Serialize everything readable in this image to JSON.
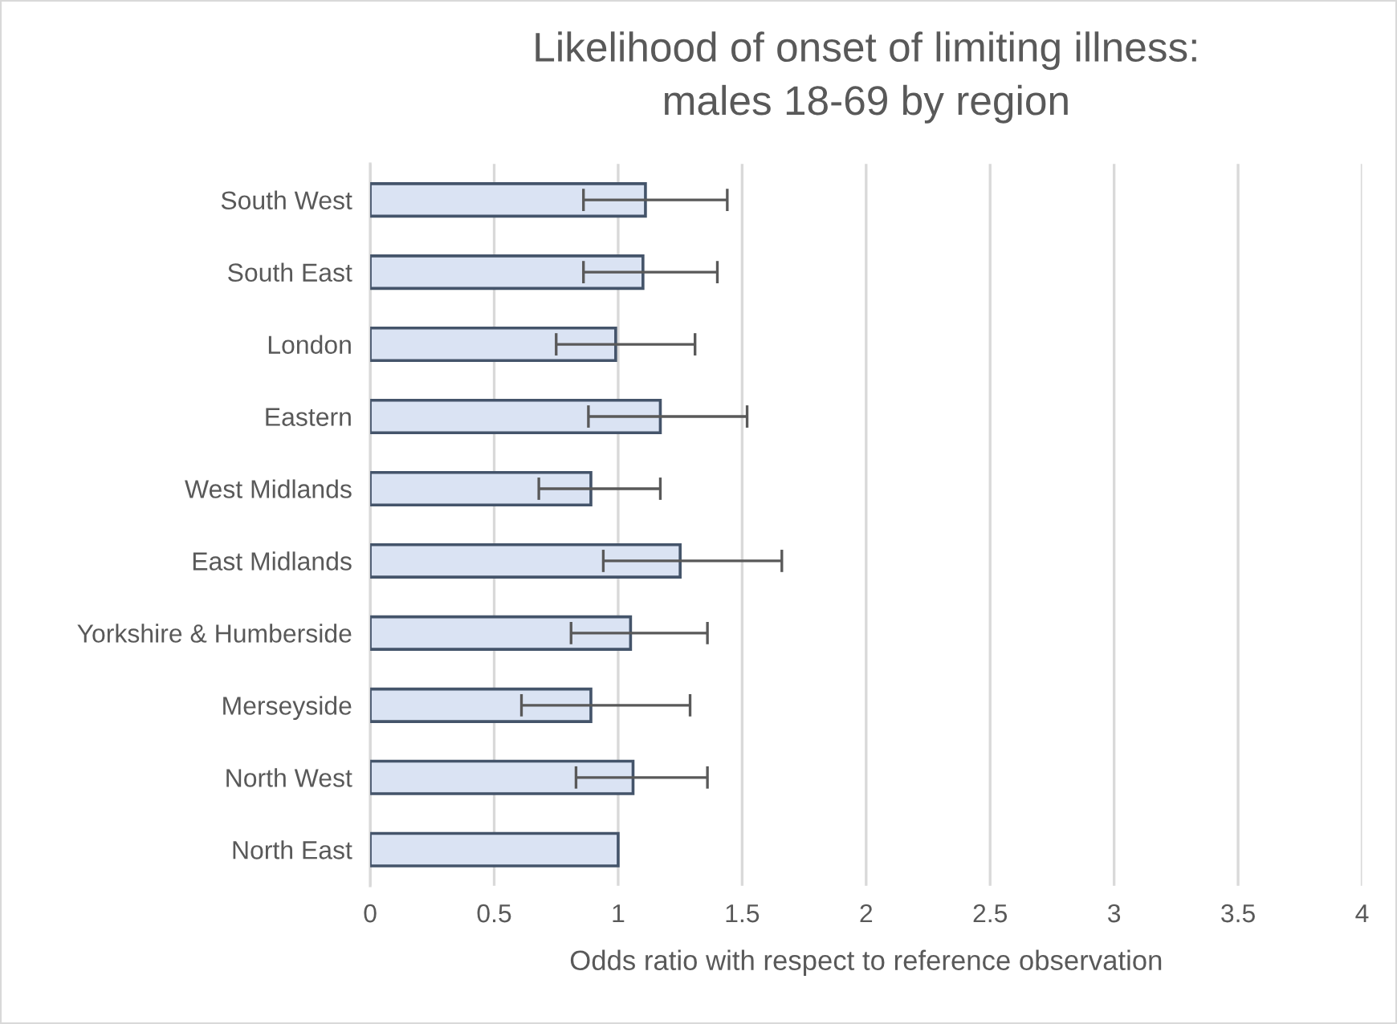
{
  "chart_data": {
    "type": "bar",
    "orientation": "horizontal",
    "title": "Likelihood of onset of limiting illness:\nmales 18-69 by region",
    "xlabel": "Odds ratio with respect to reference observation",
    "categories": [
      "South West",
      "South East",
      "London",
      "Eastern",
      "West Midlands",
      "East Midlands",
      "Yorkshire & Humberside",
      "Merseyside",
      "North West",
      "North East"
    ],
    "values": [
      1.11,
      1.1,
      0.99,
      1.17,
      0.89,
      1.25,
      1.05,
      0.89,
      1.06,
      1.0
    ],
    "errors": [
      [
        0.86,
        1.44
      ],
      [
        0.86,
        1.4
      ],
      [
        0.75,
        1.31
      ],
      [
        0.88,
        1.52
      ],
      [
        0.68,
        1.17
      ],
      [
        0.94,
        1.66
      ],
      [
        0.81,
        1.36
      ],
      [
        0.61,
        1.29
      ],
      [
        0.83,
        1.36
      ],
      null
    ],
    "color": "#dae3f3",
    "xlim": [
      0,
      4
    ],
    "xticks": [
      0,
      0.5,
      1,
      1.5,
      2,
      2.5,
      3,
      3.5,
      4
    ],
    "grid": "x"
  }
}
